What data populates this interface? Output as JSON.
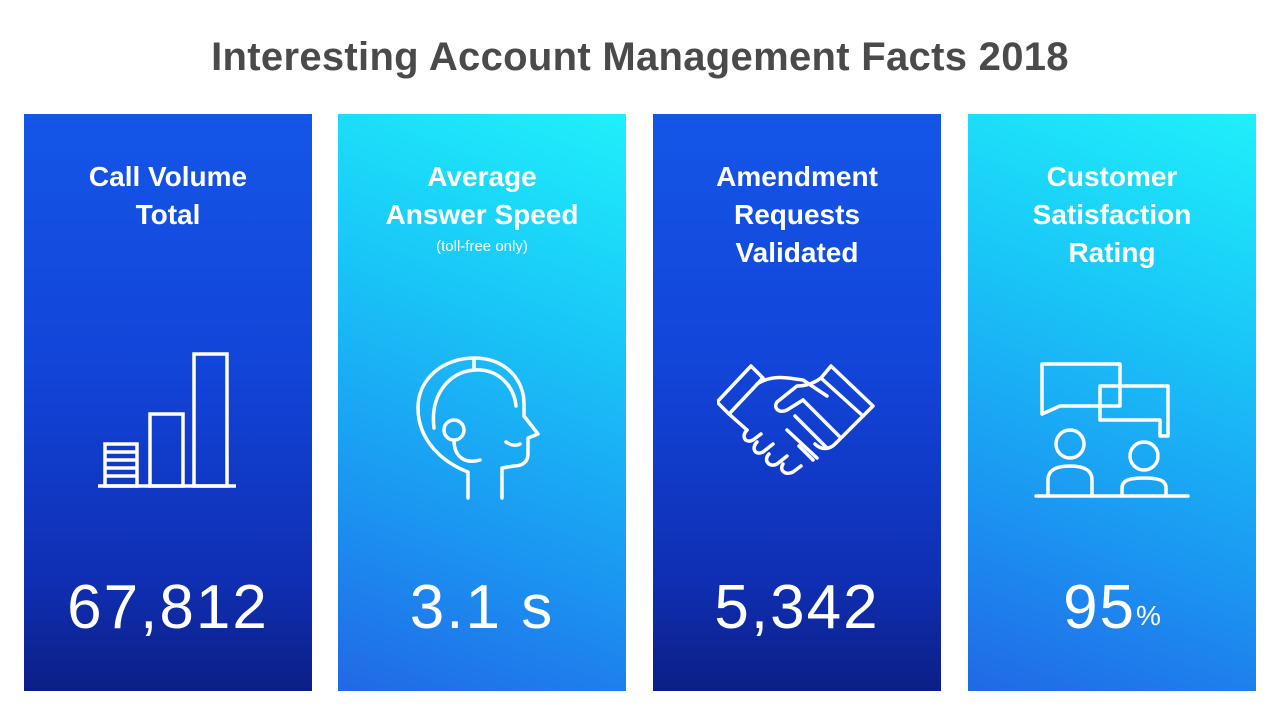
{
  "title": "Interesting Account Management Facts 2018",
  "cards": [
    {
      "heading_lines": [
        "Call Volume",
        "Total"
      ],
      "subtitle": "",
      "icon": "bar-chart-icon",
      "value": "67,812",
      "suffix": ""
    },
    {
      "heading_lines": [
        "Average",
        "Answer Speed"
      ],
      "subtitle": "(toll-free only)",
      "icon": "headset-agent-icon",
      "value": "3.1 s",
      "suffix": ""
    },
    {
      "heading_lines": [
        "Amendment",
        "Requests",
        "Validated"
      ],
      "subtitle": "",
      "icon": "handshake-icon",
      "value": "5,342",
      "suffix": ""
    },
    {
      "heading_lines": [
        "Customer",
        "Satisfaction",
        "Rating"
      ],
      "subtitle": "",
      "icon": "conversation-icon",
      "value": "95",
      "suffix": "%"
    }
  ],
  "colors": {
    "title": "#4a4a4a",
    "dark_card_top": "#1456e8",
    "dark_card_bottom": "#0c1f86",
    "light_card_top": "#1ff0fb",
    "light_card_bottom": "#2168e6"
  }
}
